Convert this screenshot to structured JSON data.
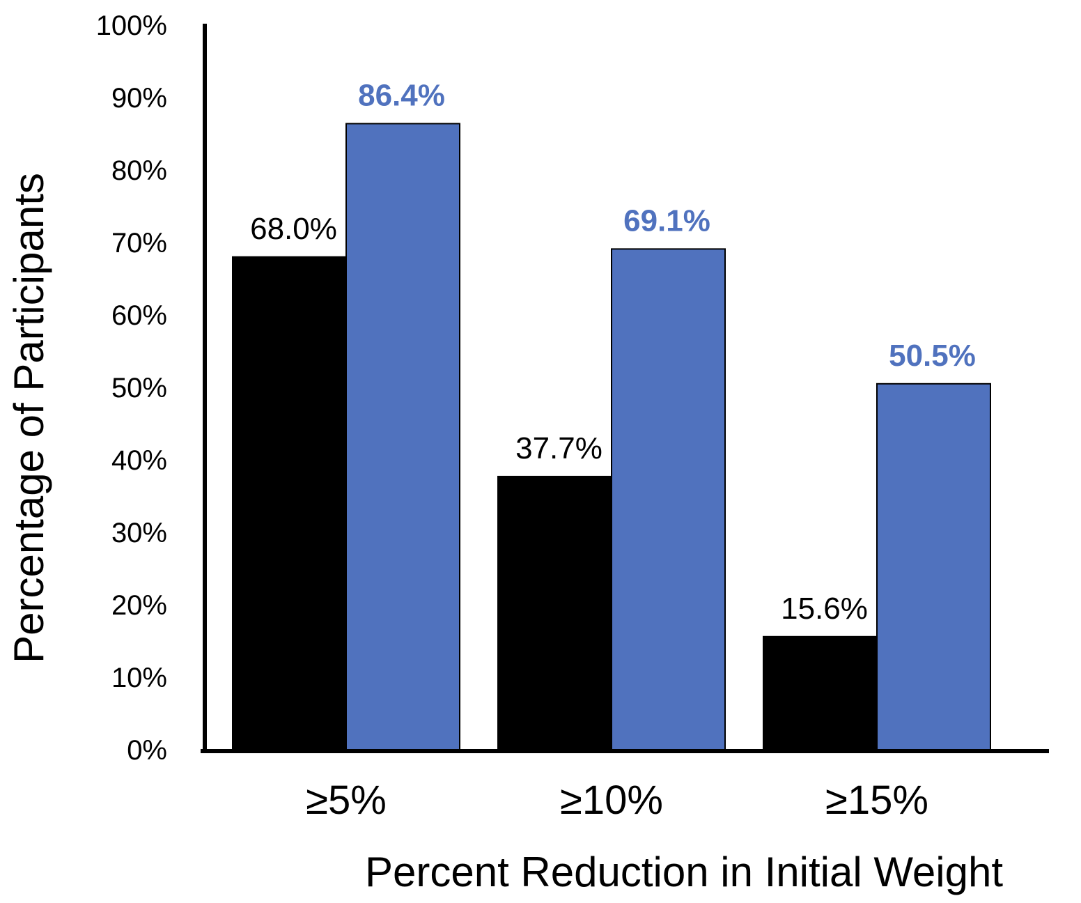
{
  "chart_data": {
    "type": "bar",
    "title": "",
    "xlabel": "Percent Reduction in Initial Weight",
    "ylabel": "Percentage of Participants",
    "categories": [
      "≥5%",
      "≥10%",
      "≥15%"
    ],
    "ylim": [
      0,
      100
    ],
    "yticks": [
      0,
      10,
      20,
      30,
      40,
      50,
      60,
      70,
      80,
      90,
      100
    ],
    "ytick_labels": [
      "0%",
      "10%",
      "20%",
      "30%",
      "40%",
      "50%",
      "60%",
      "70%",
      "80%",
      "90%",
      "100%"
    ],
    "grid": false,
    "legend": "none",
    "series": [
      {
        "name": "series-1",
        "color": "#000000",
        "label_color": "#000000",
        "label_bold": false,
        "values": [
          68.0,
          37.7,
          15.6
        ],
        "labels": [
          "68.0%",
          "37.7%",
          "15.6%"
        ]
      },
      {
        "name": "series-2",
        "color": "#5072BE",
        "label_color": "#5072BE",
        "label_bold": true,
        "values": [
          86.4,
          69.1,
          50.5
        ],
        "labels": [
          "86.4%",
          "69.1%",
          "50.5%"
        ]
      }
    ]
  }
}
